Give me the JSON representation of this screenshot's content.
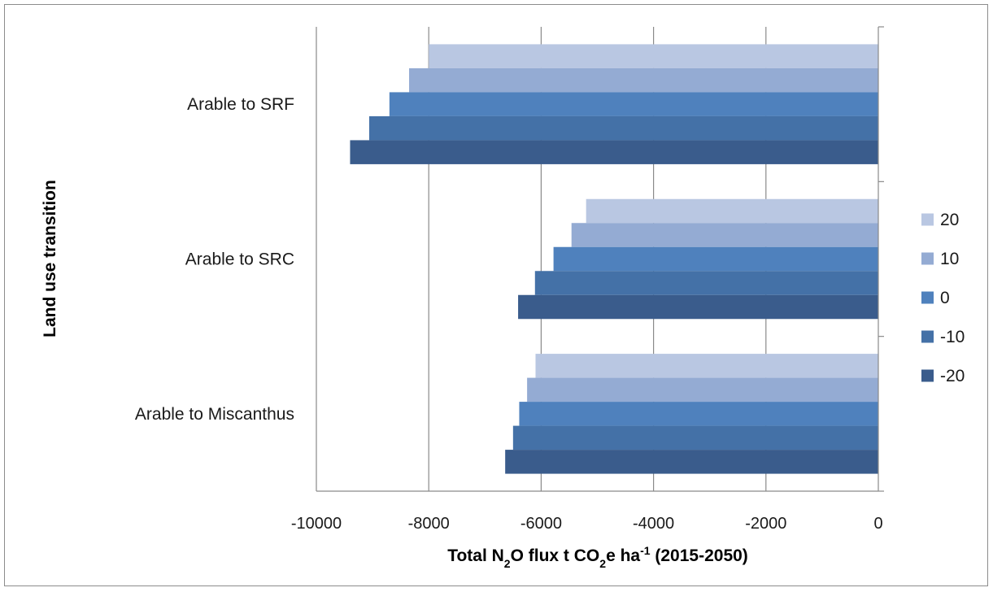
{
  "chart_data": {
    "type": "bar",
    "orientation": "horizontal",
    "categories": [
      "Arable to SRF",
      "Arable to SRC",
      "Arable to Miscanthus"
    ],
    "series": [
      {
        "name": "20",
        "color": "#b9c7e2",
        "values": [
          -8000,
          -5200,
          -6100
        ]
      },
      {
        "name": "10",
        "color": "#94abd3",
        "values": [
          -8350,
          -5460,
          -6250
        ]
      },
      {
        "name": "0",
        "color": "#4f81bd",
        "values": [
          -8700,
          -5780,
          -6390
        ]
      },
      {
        "name": "-10",
        "color": "#4471a7",
        "values": [
          -9060,
          -6110,
          -6500
        ]
      },
      {
        "name": "-20",
        "color": "#3a5c8c",
        "values": [
          -9400,
          -6410,
          -6640
        ]
      }
    ],
    "xlim": [
      -10000,
      0
    ],
    "xticks": [
      -10000,
      -8000,
      -6000,
      -4000,
      -2000,
      0
    ],
    "xticklabels": [
      "-10000",
      "-8000",
      "-6000",
      "-4000",
      "-2000",
      "0"
    ],
    "xlabel": {
      "pre": "Total N",
      "sub1": "2",
      "mid1": "O flux t CO",
      "sub2": "2",
      "mid2": "e ha",
      "sup": "-1",
      "post": " (2015-2050)"
    },
    "ylabel": "Land use transition",
    "grid": "vertical",
    "legend_position": "right",
    "legend_order": [
      "20",
      "10",
      "0",
      "-10",
      "-20"
    ]
  }
}
